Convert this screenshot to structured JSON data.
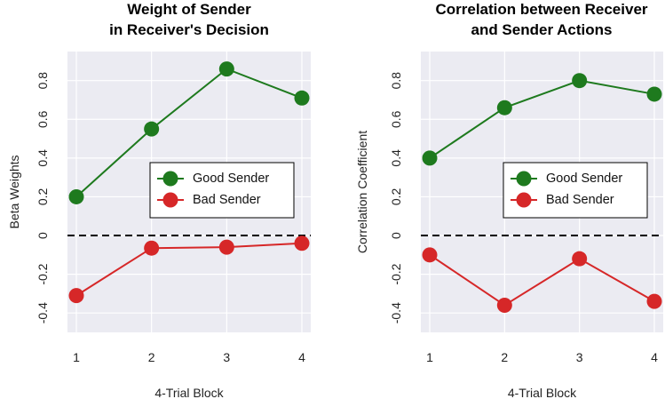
{
  "chart_data": [
    {
      "type": "line",
      "title": [
        "Weight of Sender",
        "in Receiver's Decision"
      ],
      "xlabel": "4-Trial Block",
      "ylabel": "Beta Weights",
      "categories": [
        1,
        2,
        3,
        4
      ],
      "ylim": [
        -0.5,
        0.95
      ],
      "yticks": [
        -0.4,
        -0.2,
        0,
        0.2,
        0.4,
        0.6,
        0.8
      ],
      "ytick_labels": [
        "-0.4",
        "-0.2",
        "0",
        "0.2",
        "0.4",
        "0.6",
        "0.8"
      ],
      "xtick_labels": [
        "1",
        "2",
        "3",
        "4"
      ],
      "zero_line": true,
      "grid": true,
      "legend": "center-right",
      "series": [
        {
          "name": "Good Sender",
          "values": [
            0.2,
            0.55,
            0.86,
            0.71
          ],
          "color": "#1e7a1e"
        },
        {
          "name": "Bad Sender",
          "values": [
            -0.31,
            -0.065,
            -0.06,
            -0.04
          ],
          "color": "#d62728"
        }
      ]
    },
    {
      "type": "line",
      "title": [
        "Correlation between Receiver",
        "and Sender Actions"
      ],
      "xlabel": "4-Trial Block",
      "ylabel": "Correlation Coefficient",
      "categories": [
        1,
        2,
        3,
        4
      ],
      "ylim": [
        -0.5,
        0.95
      ],
      "yticks": [
        -0.4,
        -0.2,
        0,
        0.2,
        0.4,
        0.6,
        0.8
      ],
      "ytick_labels": [
        "-0.4",
        "-0.2",
        "0",
        "0.2",
        "0.4",
        "0.6",
        "0.8"
      ],
      "xtick_labels": [
        "1",
        "2",
        "3",
        "4"
      ],
      "zero_line": true,
      "grid": true,
      "legend": "center-right",
      "series": [
        {
          "name": "Good Sender",
          "values": [
            0.4,
            0.66,
            0.8,
            0.73
          ],
          "color": "#1e7a1e"
        },
        {
          "name": "Bad Sender",
          "values": [
            -0.1,
            -0.36,
            -0.12,
            -0.34
          ],
          "color": "#d62728"
        }
      ]
    }
  ],
  "colors": {
    "panel_bg": "#ebebf2",
    "grid": "#ffffff",
    "zero_line": "#000000"
  }
}
